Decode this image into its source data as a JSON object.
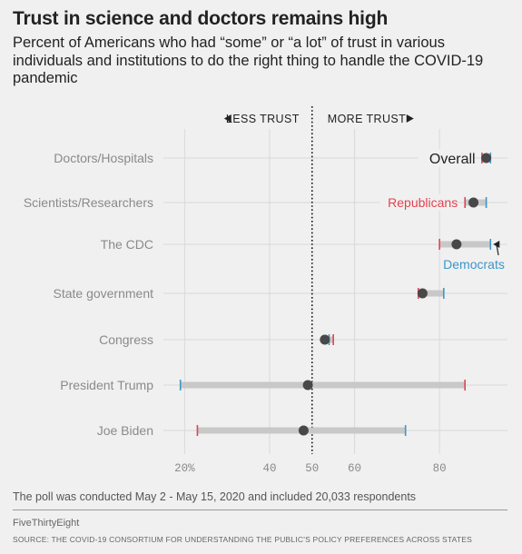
{
  "title": "Trust in science and doctors remains high",
  "subtitle": "Percent of Americans who had “some” or “a lot” of trust in various individuals and institutions to do the right thing to handle the COVID-19 pandemic",
  "note": "The poll was conducted May 2 - May 15, 2020 and included 20,033 respondents",
  "brand": "FiveThirtyEight",
  "source": "SOURCE: THE COVID-19 CONSORTIUM FOR UNDERSTANDING THE PUBLIC'S POLICY PREFERENCES ACROSS STATES",
  "chart_data": {
    "type": "dot-range",
    "categories": [
      "Doctors/Hospitals",
      "Scientists/Researchers",
      "The CDC",
      "State government",
      "Congress",
      "President Trump",
      "Joe Biden"
    ],
    "series": [
      {
        "name": "Overall",
        "values": [
          91,
          88,
          84,
          76,
          53,
          49,
          48
        ]
      },
      {
        "name": "Republicans",
        "values": [
          90,
          86,
          80,
          75,
          55,
          86,
          23
        ]
      },
      {
        "name": "Democrats",
        "values": [
          92,
          91,
          92,
          81,
          54,
          19,
          72
        ]
      }
    ],
    "x_ticks": [
      20,
      40,
      50,
      60,
      80
    ],
    "x_tick_labels": [
      "20%",
      "40",
      "50",
      "60",
      "80"
    ],
    "xlim": [
      15,
      96
    ],
    "reference_line": 50,
    "less_label": "LESS TRUST",
    "more_label": "MORE TRUST",
    "annotations": {
      "overall": "Overall",
      "republicans": "Republicans",
      "democrats": "Democrats"
    },
    "colors": {
      "overall": "#484848",
      "republicans": "#e4424f",
      "democrats": "#3d96c8",
      "range": "#c8c8c8",
      "grid": "#d9d9d9"
    }
  }
}
